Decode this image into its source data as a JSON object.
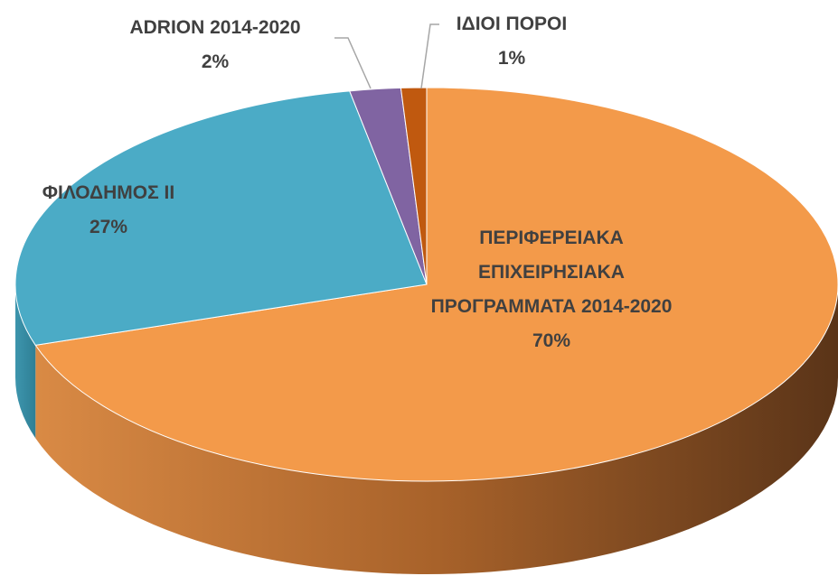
{
  "chart_data": {
    "type": "pie",
    "categories": [
      "ΠΕΡΙΦΕΡΕΙΑΚΑ ΕΠΙΧΕΙΡΗΣΙΑΚΑ ΠΡΟΓΡΑΜΜΑΤΑ 2014-2020",
      "ΦΙΛΟΔΗΜΟΣ ΙΙ",
      "ADRION 2014-2020",
      "ΙΔΙΟΙ ΠΟΡΟΙ"
    ],
    "values": [
      70,
      27,
      2,
      1
    ],
    "value_labels": [
      "70%",
      "27%",
      "2%",
      "1%"
    ],
    "colors": [
      "#f39a4a",
      "#4babc6",
      "#8064a2",
      "#c0590f"
    ]
  }
}
